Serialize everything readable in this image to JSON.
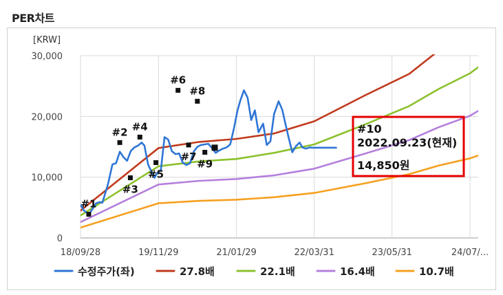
{
  "title": "PER차트",
  "colors": {
    "price": "#2e75d6",
    "per_27_8": "#c0391b",
    "per_22_1": "#8bc12c",
    "per_16_4": "#b47fdc",
    "per_10_7": "#f5a01f",
    "highlight_box": "#e60000"
  },
  "chart_data": {
    "type": "line",
    "unit_label": "[KRW]",
    "x_tick_labels": [
      "18/09/28",
      "19/11/29",
      "21/01/29",
      "22/03/31",
      "23/05/31",
      "24/07/..."
    ],
    "x_tick_days": [
      0,
      427,
      854,
      1280,
      1706,
      2133
    ],
    "ylim": [
      0,
      30000
    ],
    "y_ticks": [
      0,
      10000,
      20000,
      30000
    ],
    "y_tick_labels": [
      "0",
      "10,000",
      "20,000",
      "30,000"
    ],
    "xlim_days": [
      0,
      2200
    ],
    "grid": true,
    "legend_position": "bottom",
    "series": [
      {
        "key": "price",
        "name": "수정주가(좌)",
        "x_days": [
          0,
          20,
          45,
          65,
          85,
          105,
          120,
          150,
          175,
          195,
          215,
          235,
          255,
          275,
          295,
          315,
          335,
          350,
          370,
          390,
          405,
          420,
          440,
          460,
          480,
          500,
          520,
          540,
          560,
          580,
          600,
          620,
          640,
          660,
          680,
          700,
          720,
          740,
          760,
          780,
          800,
          820,
          840,
          860,
          875,
          895,
          915,
          935,
          955,
          975,
          1000,
          1020,
          1040,
          1060,
          1085,
          1105,
          1120,
          1140,
          1160,
          1180,
          1200,
          1215,
          1235,
          1255,
          1270,
          1290,
          1305,
          1320,
          1340,
          1360,
          1380,
          1400
        ],
        "values": [
          5400,
          4500,
          3900,
          4700,
          5700,
          5900,
          5800,
          8800,
          12100,
          12300,
          14200,
          13300,
          12700,
          14300,
          14900,
          15200,
          15700,
          15200,
          12100,
          10800,
          9900,
          10700,
          11200,
          16600,
          16200,
          14300,
          13800,
          13900,
          12400,
          12000,
          12300,
          14200,
          15000,
          15300,
          15400,
          15500,
          14800,
          14000,
          14400,
          14700,
          14900,
          15400,
          18000,
          21000,
          22600,
          24300,
          23100,
          19400,
          21000,
          17400,
          18800,
          15300,
          15900,
          20400,
          22500,
          21100,
          19100,
          16500,
          14100,
          15100,
          15700,
          14900,
          14700,
          14900,
          14850,
          14850,
          14850,
          14850,
          14850,
          14850,
          14850,
          14850
        ]
      },
      {
        "key": "per_27_8",
        "name": "27.8배",
        "x_days": [
          0,
          427,
          650,
          854,
          1060,
          1280,
          1560,
          1800,
          1960,
          2133,
          2200
        ],
        "values": [
          4500,
          14800,
          15800,
          16300,
          17200,
          19200,
          23500,
          27000,
          30800,
          34000,
          36000
        ]
      },
      {
        "key": "per_22_1",
        "name": "22.1배",
        "x_days": [
          0,
          427,
          650,
          854,
          1060,
          1280,
          1560,
          1800,
          1960,
          2133,
          2200
        ],
        "values": [
          3700,
          11800,
          12600,
          13000,
          14000,
          15400,
          18700,
          21700,
          24500,
          27100,
          28600
        ]
      },
      {
        "key": "per_16_4",
        "name": "16.4배",
        "x_days": [
          0,
          427,
          650,
          854,
          1060,
          1280,
          1560,
          1800,
          1960,
          2133,
          2200
        ],
        "values": [
          2600,
          8800,
          9400,
          9700,
          10300,
          11400,
          13900,
          16100,
          18200,
          20100,
          21300
        ]
      },
      {
        "key": "per_10_7",
        "name": "10.7배",
        "x_days": [
          0,
          427,
          650,
          854,
          1060,
          1280,
          1560,
          1800,
          1960,
          2133,
          2200
        ],
        "values": [
          1700,
          5700,
          6100,
          6300,
          6700,
          7400,
          9000,
          10500,
          11900,
          13100,
          13800
        ]
      }
    ],
    "markers": [
      {
        "label": "#1",
        "x_day": 45,
        "value": 3900,
        "label_pos": "above"
      },
      {
        "label": "#2",
        "x_day": 215,
        "value": 15700,
        "label_pos": "above"
      },
      {
        "label": "#3",
        "x_day": 273,
        "value": 9900,
        "label_pos": "below"
      },
      {
        "label": "#4",
        "x_day": 325,
        "value": 16600,
        "label_pos": "above"
      },
      {
        "label": "#5",
        "x_day": 413,
        "value": 12400,
        "label_pos": "below"
      },
      {
        "label": "#6",
        "x_day": 534,
        "value": 24300,
        "label_pos": "above"
      },
      {
        "label": "#7",
        "x_day": 592,
        "value": 15300,
        "label_pos": "below"
      },
      {
        "label": "#8",
        "x_day": 640,
        "value": 22500,
        "label_pos": "above"
      },
      {
        "label": "#9",
        "x_day": 681,
        "value": 14100,
        "label_pos": "below"
      },
      {
        "label": "#10",
        "x_day": 735,
        "value": 14850,
        "label_pos": "none"
      }
    ],
    "annotation": {
      "marker": "#10",
      "date": "2022.09.23(현재)",
      "price": "14,850원"
    }
  }
}
